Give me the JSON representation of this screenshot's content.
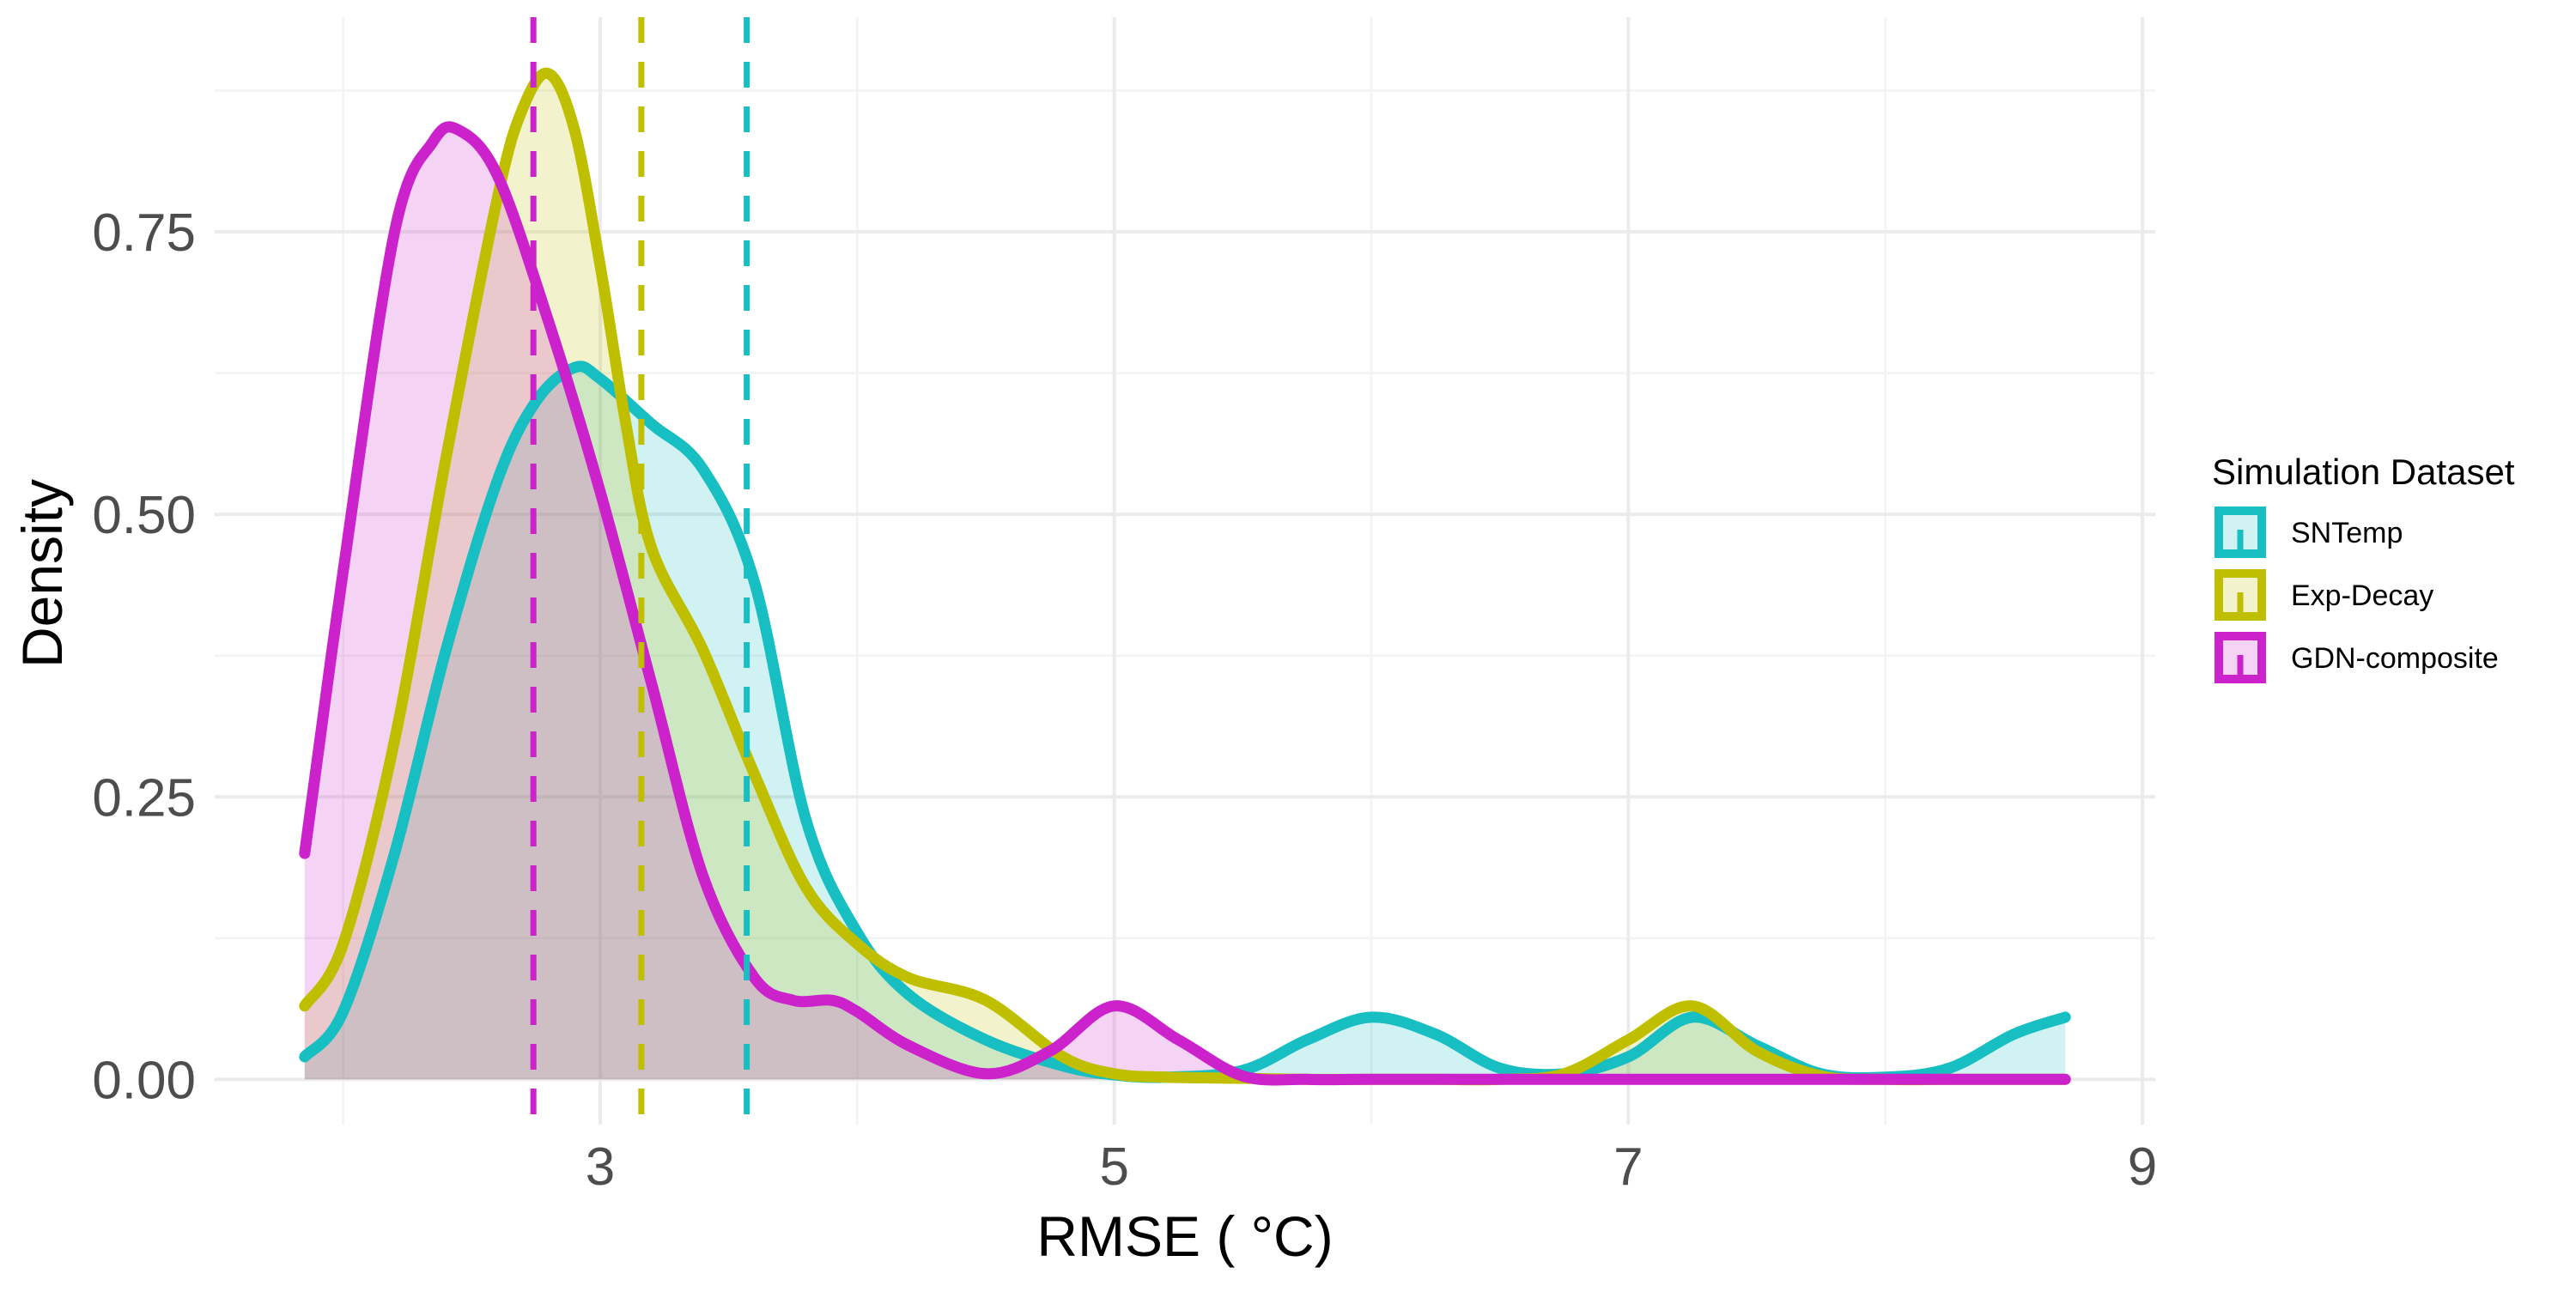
{
  "chart_data": {
    "type": "area",
    "title": "",
    "xlabel": "RMSE ( °C)",
    "ylabel": "Density",
    "xlim": [
      1.5,
      9.05
    ],
    "ylim": [
      -0.04,
      0.94
    ],
    "x_ticks": [
      3,
      5,
      7,
      9
    ],
    "x_tick_labels": [
      "3",
      "5",
      "7",
      "9"
    ],
    "y_ticks": [
      0,
      0.25,
      0.5,
      0.75
    ],
    "y_tick_labels": [
      "0.00",
      "0.25",
      "0.50",
      "0.75"
    ],
    "x_minor_ticks": [
      2,
      4,
      6,
      8
    ],
    "y_minor_ticks": [
      0.125,
      0.375,
      0.625,
      0.875
    ],
    "grid": true,
    "legend": {
      "title": "Simulation Dataset",
      "position": "right",
      "entries": [
        "SNTemp",
        "Exp-Decay",
        "GDN-composite"
      ]
    },
    "series": [
      {
        "name": "SNTemp",
        "color": "#17BEC2",
        "mean_line_x": 3.57,
        "x": [
          1.85,
          2.0,
          2.2,
          2.4,
          2.6,
          2.75,
          2.9,
          3.0,
          3.2,
          3.4,
          3.6,
          3.8,
          4.0,
          4.2,
          4.5,
          4.8,
          5.0,
          5.2,
          5.5,
          5.75,
          6.0,
          6.25,
          6.5,
          6.75,
          7.0,
          7.25,
          7.5,
          7.75,
          8.0,
          8.25,
          8.5,
          8.7
        ],
        "values": [
          0.02,
          0.06,
          0.2,
          0.38,
          0.53,
          0.6,
          0.63,
          0.62,
          0.58,
          0.54,
          0.44,
          0.23,
          0.13,
          0.075,
          0.035,
          0.012,
          0.004,
          0.002,
          0.008,
          0.035,
          0.055,
          0.04,
          0.01,
          0.005,
          0.02,
          0.055,
          0.03,
          0.005,
          0.002,
          0.01,
          0.04,
          0.055
        ]
      },
      {
        "name": "Exp-Decay",
        "color": "#BFBF00",
        "mean_line_x": 3.16,
        "x": [
          1.85,
          2.0,
          2.2,
          2.4,
          2.6,
          2.7,
          2.8,
          2.9,
          3.0,
          3.1,
          3.2,
          3.4,
          3.6,
          3.8,
          4.0,
          4.2,
          4.5,
          4.8,
          5.0,
          5.2,
          5.5,
          5.75,
          6.0,
          6.25,
          6.5,
          6.75,
          7.0,
          7.25,
          7.5,
          7.75,
          8.0,
          8.25,
          8.5,
          8.7
        ],
        "values": [
          0.065,
          0.12,
          0.3,
          0.55,
          0.78,
          0.86,
          0.89,
          0.84,
          0.72,
          0.58,
          0.47,
          0.38,
          0.27,
          0.17,
          0.12,
          0.09,
          0.07,
          0.02,
          0.005,
          0.002,
          0.001,
          0.0,
          0.0,
          0.0,
          0.0,
          0.005,
          0.035,
          0.065,
          0.025,
          0.003,
          0.0,
          0.0,
          0.0,
          0.0
        ]
      },
      {
        "name": "GDN-composite",
        "color": "#CC22CC",
        "mean_line_x": 2.74,
        "x": [
          1.85,
          2.0,
          2.2,
          2.35,
          2.45,
          2.6,
          2.8,
          3.0,
          3.2,
          3.4,
          3.6,
          3.75,
          3.9,
          4.0,
          4.2,
          4.5,
          4.75,
          5.0,
          5.25,
          5.5,
          5.75,
          6.0,
          6.5,
          7.0,
          7.5,
          8.0,
          8.5,
          8.7
        ],
        "values": [
          0.2,
          0.45,
          0.75,
          0.83,
          0.84,
          0.8,
          0.67,
          0.52,
          0.35,
          0.18,
          0.09,
          0.07,
          0.07,
          0.06,
          0.03,
          0.005,
          0.025,
          0.065,
          0.035,
          0.003,
          0.0,
          0.0,
          0.0,
          0.0,
          0.0,
          0.0,
          0.0,
          0.0
        ]
      }
    ]
  }
}
